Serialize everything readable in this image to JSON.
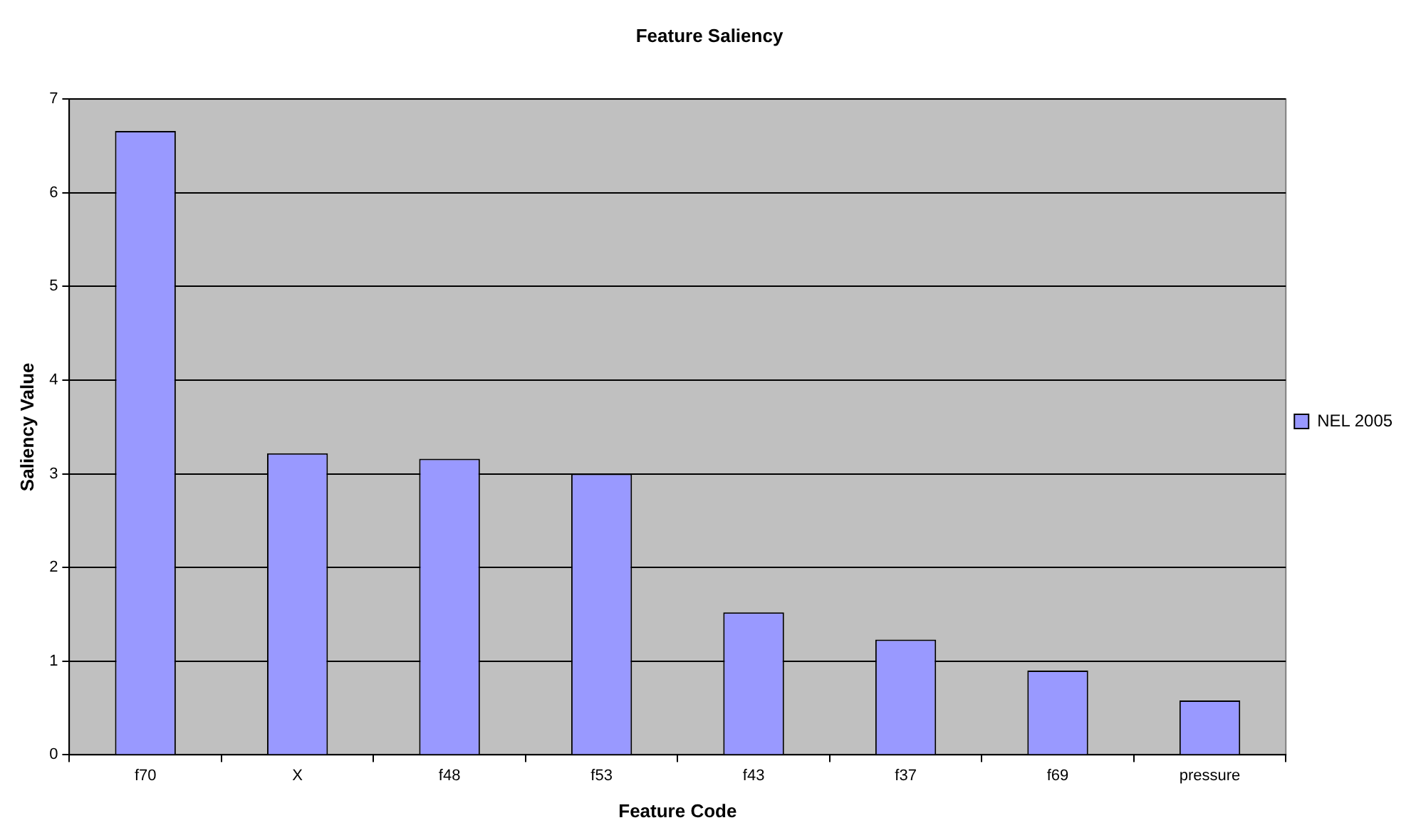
{
  "chart_data": {
    "type": "bar",
    "title": "Feature Saliency",
    "xlabel": "Feature Code",
    "ylabel": "Saliency Value",
    "categories": [
      "f70",
      "X",
      "f48",
      "f53",
      "f43",
      "f37",
      "f69",
      "pressure"
    ],
    "series": [
      {
        "name": "NEL 2005",
        "color": "#9999ff",
        "values": [
          6.66,
          3.22,
          3.16,
          3.0,
          1.52,
          1.23,
          0.9,
          0.58
        ]
      }
    ],
    "ylim": [
      0,
      7
    ],
    "yticks": [
      0,
      1,
      2,
      3,
      4,
      5,
      6,
      7
    ],
    "grid": "y",
    "legend": "right"
  }
}
